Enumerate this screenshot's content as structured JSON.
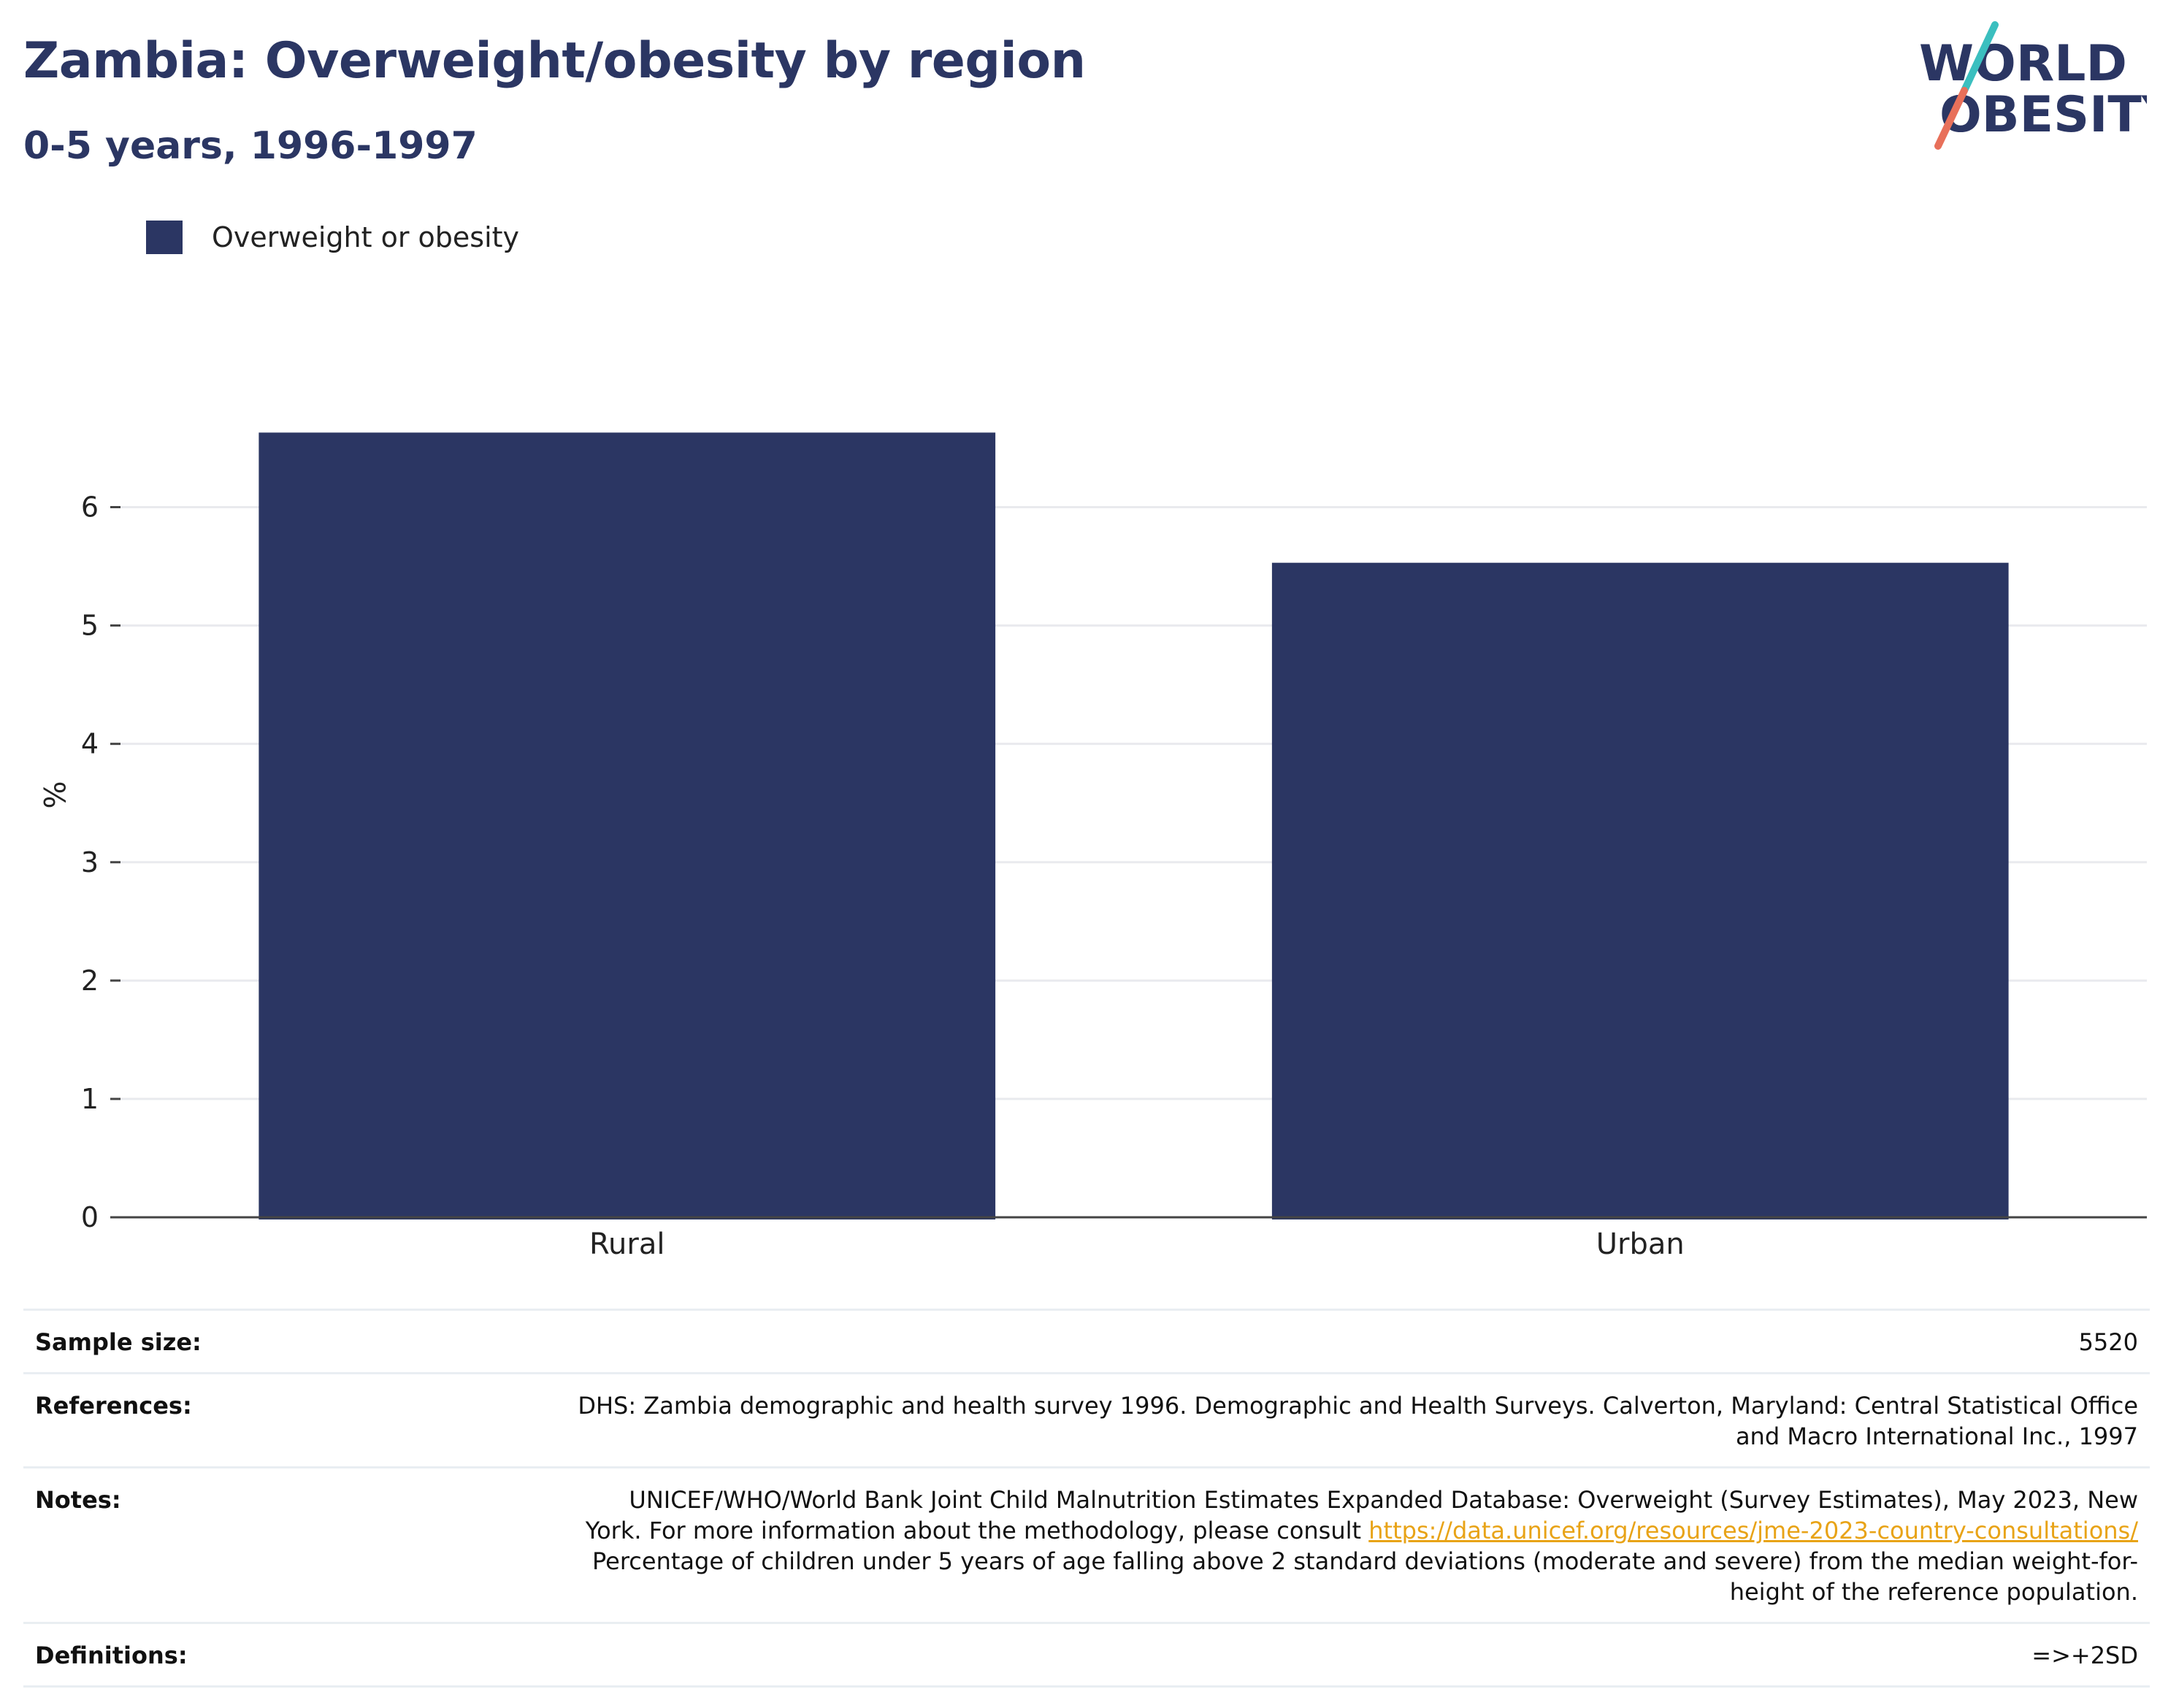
{
  "header": {
    "title": "Zambia: Overweight/obesity by region",
    "subtitle": "0-5 years, 1996-1997"
  },
  "logo": {
    "line1": "WORLD",
    "line2": "OBESITY",
    "colors": {
      "text": "#2b3663",
      "slash_top": "#3bbfbf",
      "slash_bottom": "#e8705a"
    }
  },
  "colors": {
    "bar": "#2b3663",
    "gridline": "#e9eaee",
    "axis": "#444444",
    "link": "#e8a317"
  },
  "chart_data": {
    "type": "bar",
    "title": "Zambia: Overweight/obesity by region",
    "subtitle": "0-5 years, 1996-1997",
    "categories": [
      "Rural",
      "Urban"
    ],
    "series": [
      {
        "name": "Overweight or obesity",
        "values": [
          6.63,
          5.53
        ]
      }
    ],
    "xlabel": "",
    "ylabel": "%",
    "ylim": [
      0,
      7.2
    ],
    "yticks": [
      0,
      1,
      2,
      3,
      4,
      5,
      6
    ],
    "grid": true,
    "legend": "top-left"
  },
  "info": {
    "sample_size": {
      "label": "Sample size:",
      "value": "5520"
    },
    "references": {
      "label": "References:",
      "line1": "DHS: Zambia demographic and health survey 1996. Demographic and Health Surveys. Calverton, Maryland: Central Statistical Office",
      "line2": "and Macro International Inc., 1997"
    },
    "notes": {
      "label": "Notes:",
      "line1": "UNICEF/WHO/World Bank Joint Child Malnutrition Estimates Expanded Database: Overweight (Survey Estimates), May 2023, New",
      "line2_prefix": "York. For more information about the methodology, please consult ",
      "link": "https://data.unicef.org/resources/jme-2023-country-consultations/",
      "line3": "Percentage of children under 5 years of age falling above 2 standard deviations (moderate and severe) from the median weight-for-",
      "line4": "height of the reference population."
    },
    "definitions": {
      "label": "Definitions:",
      "value": "=>+2SD"
    }
  }
}
